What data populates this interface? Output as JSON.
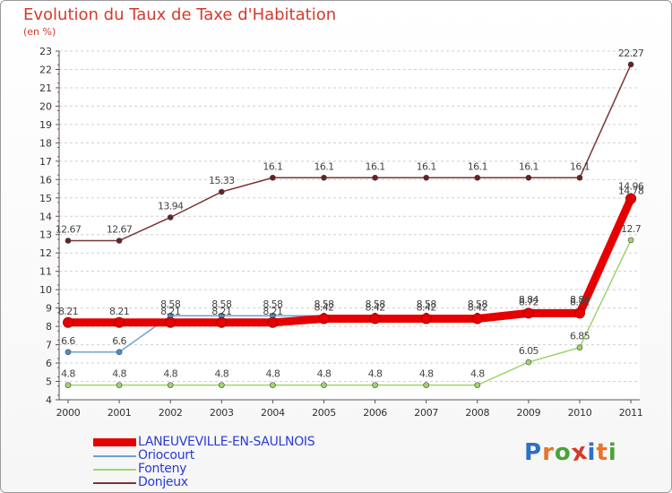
{
  "chart_data": {
    "type": "line",
    "title": "Evolution du Taux de Taxe d'Habitation",
    "subtitle": "(en %)",
    "categories": [
      "2000",
      "2001",
      "2002",
      "2003",
      "2004",
      "2005",
      "2006",
      "2007",
      "2008",
      "2009",
      "2010",
      "2011"
    ],
    "ylim": [
      4,
      23
    ],
    "yticks": [
      "4",
      "5",
      "6",
      "7",
      "8",
      "9",
      "10",
      "11",
      "12",
      "13",
      "14",
      "15",
      "16",
      "17",
      "18",
      "19",
      "20",
      "21",
      "22",
      "23"
    ],
    "series": [
      {
        "name": "LANEUVEVILLE-EN-SAULNOIS",
        "color": "#e60000",
        "values": [
          8.21,
          8.21,
          8.21,
          8.21,
          8.21,
          8.42,
          8.42,
          8.42,
          8.42,
          8.72,
          8.72,
          14.96
        ],
        "labels": [
          "8.21",
          "8.21",
          "8.21",
          "8.21",
          "8.21",
          "8.42",
          "8.42",
          "8.42",
          "8.42",
          "8.72",
          "8.72",
          "14.96"
        ]
      },
      {
        "name": "Oriocourt",
        "color": "#6ba3d6",
        "values": [
          6.6,
          6.6,
          8.58,
          8.58,
          8.58,
          8.58,
          8.58,
          8.58,
          8.58,
          8.84,
          8.84,
          14.78
        ],
        "labels": [
          "6.6",
          "6.6",
          "8.58",
          "8.58",
          "8.58",
          "8.58",
          "8.58",
          "8.58",
          "8.58",
          "8.84",
          "8.84",
          "14.78"
        ]
      },
      {
        "name": "Fonteny",
        "color": "#9ed66b",
        "values": [
          4.8,
          4.8,
          4.8,
          4.8,
          4.8,
          4.8,
          4.8,
          4.8,
          4.8,
          6.05,
          6.85,
          12.7
        ],
        "labels": [
          "4.8",
          "4.8",
          "4.8",
          "4.8",
          "4.8",
          "4.8",
          "4.8",
          "4.8",
          "4.8",
          "6.05",
          "6.85",
          "12.7"
        ]
      },
      {
        "name": "Donjeux",
        "color": "#7b3434",
        "values": [
          12.67,
          12.67,
          13.94,
          15.33,
          16.1,
          16.1,
          16.1,
          16.1,
          16.1,
          16.1,
          16.1,
          22.27
        ],
        "labels": [
          "12.67",
          "12.67",
          "13.94",
          "15.33",
          "16.1",
          "16.1",
          "16.1",
          "16.1",
          "16.1",
          "16.1",
          "16.1",
          "22.27"
        ]
      }
    ],
    "legend": "bottom-left"
  },
  "logo": {
    "text": "Proxiti"
  }
}
